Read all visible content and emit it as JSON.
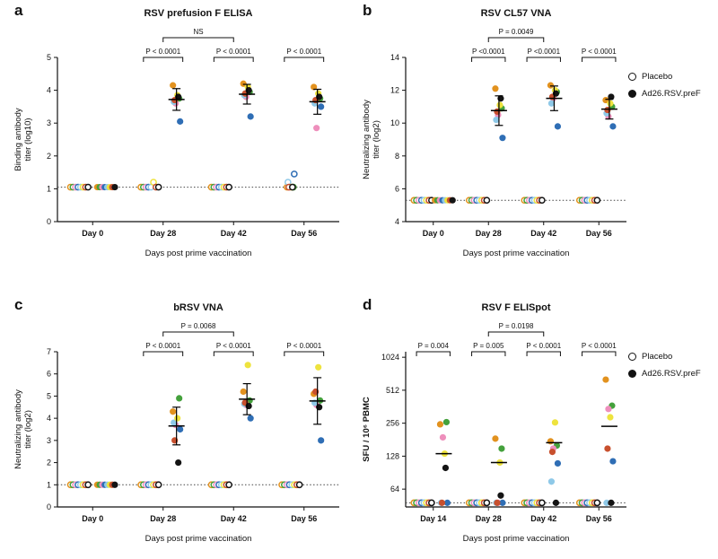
{
  "legend": {
    "placebo_label": "Placebo",
    "vaccine_label": "Ad26.RSV.preF"
  },
  "style": {
    "palette": [
      "#E2921F",
      "#44A13C",
      "#EE8FBC",
      "#2F6EB5",
      "#8FC9E8",
      "#EEE33E",
      "#C8502E",
      "#141414"
    ],
    "axis_color": "#111111",
    "mean_color": "#000000",
    "lod_color": "#444444",
    "background": "#ffffff"
  },
  "chart_data": [
    {
      "panel_label": "a",
      "type": "scatter",
      "title": "RSV prefusion F ELISA",
      "scale": "linear",
      "ylim": [
        0,
        5
      ],
      "yticks": [
        0,
        1,
        2,
        3,
        4,
        5
      ],
      "lod": 1.05,
      "ylabel_lines": [
        "Binding antibody",
        "titer (log10)"
      ],
      "ylabel_bold": false,
      "xlabel": "Days post prime vaccination",
      "categories": [
        "Day 0",
        "Day 28",
        "Day 42",
        "Day 56"
      ],
      "groups": [
        {
          "name": "Placebo",
          "style": "open",
          "points": [
            [
              1.05,
              1.05,
              1.05,
              1.05,
              1.05,
              1.05,
              1.05,
              1.05
            ],
            [
              1.05,
              1.05,
              1.05,
              1.05,
              1.05,
              1.2,
              1.05,
              1.05
            ],
            [
              1.05,
              1.05,
              1.05,
              1.05,
              1.05,
              1.05,
              1.05,
              1.05
            ],
            [
              1.05,
              1.05,
              1.05,
              1.45,
              1.2,
              1.05,
              1.05,
              1.05
            ]
          ]
        },
        {
          "name": "Ad26.RSV.preF",
          "style": "filled",
          "points": [
            [
              1.05,
              1.05,
              1.05,
              1.05,
              1.05,
              1.05,
              1.05,
              1.05
            ],
            [
              4.15,
              3.75,
              3.6,
              3.05,
              3.65,
              3.85,
              3.7,
              3.8
            ],
            [
              4.2,
              3.95,
              3.8,
              3.2,
              3.85,
              4.1,
              3.9,
              4.0
            ],
            [
              4.1,
              3.75,
              2.85,
              3.5,
              3.6,
              3.9,
              3.7,
              3.8
            ]
          ]
        }
      ],
      "center": [
        null,
        3.72,
        3.88,
        3.65
      ],
      "err": [
        null,
        0.33,
        0.3,
        0.38
      ],
      "comparisons": [
        {
          "cat": 1,
          "label": "P < 0.0001"
        },
        {
          "cat": 2,
          "label": "P < 0.0001"
        },
        {
          "cat": 3,
          "label": "P < 0.0001"
        }
      ],
      "span_comparison": {
        "from": 1,
        "to": 2,
        "label": "NS"
      }
    },
    {
      "panel_label": "b",
      "type": "scatter",
      "title": "RSV CL57 VNA",
      "scale": "linear",
      "ylim": [
        4,
        14
      ],
      "yticks": [
        4,
        6,
        8,
        10,
        12,
        14
      ],
      "lod": 5.3,
      "ylabel_lines": [
        "Neutralizing antibody",
        "titer (log2)"
      ],
      "ylabel_bold": false,
      "xlabel": "Days post prime vaccination",
      "categories": [
        "Day 0",
        "Day 28",
        "Day 42",
        "Day 56"
      ],
      "groups": [
        {
          "name": "Placebo",
          "style": "open",
          "points": [
            [
              5.3,
              5.3,
              5.3,
              5.3,
              5.3,
              5.3,
              5.3,
              5.3
            ],
            [
              5.3,
              5.3,
              5.3,
              5.3,
              5.3,
              5.3,
              5.3,
              5.3
            ],
            [
              5.3,
              5.3,
              5.3,
              5.3,
              5.3,
              5.3,
              5.3,
              5.3
            ],
            [
              5.3,
              5.3,
              5.3,
              5.3,
              5.3,
              5.3,
              5.3,
              5.3
            ]
          ]
        },
        {
          "name": "Ad26.RSV.preF",
          "style": "filled",
          "points": [
            [
              5.3,
              5.3,
              5.3,
              5.3,
              5.3,
              5.3,
              5.3,
              5.3
            ],
            [
              12.1,
              10.9,
              10.5,
              9.1,
              10.2,
              11.1,
              10.7,
              11.5
            ],
            [
              12.3,
              11.9,
              11.5,
              9.8,
              11.2,
              12.0,
              11.6,
              11.8
            ],
            [
              11.4,
              11.0,
              10.4,
              9.8,
              10.6,
              11.2,
              10.8,
              11.6
            ]
          ]
        }
      ],
      "center": [
        null,
        10.76,
        11.51,
        10.85
      ],
      "err": [
        null,
        0.9,
        0.75,
        0.6
      ],
      "comparisons": [
        {
          "cat": 1,
          "label": "P <0.0001"
        },
        {
          "cat": 2,
          "label": "P <0.0001"
        },
        {
          "cat": 3,
          "label": "P < 0.0001"
        }
      ],
      "span_comparison": {
        "from": 1,
        "to": 2,
        "label": "P = 0.0049"
      }
    },
    {
      "panel_label": "c",
      "type": "scatter",
      "title": "bRSV VNA",
      "scale": "linear",
      "ylim": [
        0,
        7
      ],
      "yticks": [
        0,
        1,
        2,
        3,
        4,
        5,
        6,
        7
      ],
      "lod": 1.0,
      "ylabel_lines": [
        "Neutralizing antibody",
        "titer (log2)"
      ],
      "ylabel_bold": false,
      "xlabel": "Days post prime vaccination",
      "categories": [
        "Day 0",
        "Day 28",
        "Day 42",
        "Day 56"
      ],
      "groups": [
        {
          "name": "Placebo",
          "style": "open",
          "points": [
            [
              1.0,
              1.0,
              1.0,
              1.0,
              1.0,
              1.0,
              1.0,
              1.0
            ],
            [
              1.0,
              1.0,
              1.0,
              1.0,
              1.0,
              1.0,
              1.0,
              1.0
            ],
            [
              1.0,
              1.0,
              1.0,
              1.0,
              1.0,
              1.0,
              1.0,
              1.0
            ],
            [
              1.0,
              1.0,
              1.0,
              1.0,
              1.0,
              1.0,
              1.0,
              1.0
            ]
          ]
        },
        {
          "name": "Ad26.RSV.preF",
          "style": "filled",
          "points": [
            [
              1.0,
              1.0,
              1.0,
              1.0,
              1.0,
              1.0,
              1.0,
              1.0
            ],
            [
              4.3,
              4.9,
              3.7,
              3.5,
              3.8,
              4.0,
              3.0,
              2.0
            ],
            [
              5.2,
              4.8,
              4.6,
              4.0,
              4.65,
              6.4,
              4.7,
              4.55
            ],
            [
              5.1,
              4.8,
              4.6,
              3.0,
              4.7,
              6.3,
              5.2,
              4.5
            ]
          ]
        }
      ],
      "center": [
        null,
        3.65,
        4.86,
        4.78
      ],
      "err": [
        null,
        0.85,
        0.7,
        1.05
      ],
      "comparisons": [
        {
          "cat": 1,
          "label": "P < 0.0001"
        },
        {
          "cat": 2,
          "label": "P < 0.0001"
        },
        {
          "cat": 3,
          "label": "P < 0.0001"
        }
      ],
      "span_comparison": {
        "from": 1,
        "to": 2,
        "label": "P = 0.0068"
      }
    },
    {
      "panel_label": "d",
      "type": "scatter",
      "title": "RSV F ELISpot",
      "scale": "log2",
      "ylim": [
        44,
        1150
      ],
      "yticks": [
        64,
        128,
        256,
        512,
        1024
      ],
      "lod": 48,
      "ylabel_lines": [
        "SFU / 10⁶ PBMC"
      ],
      "ylabel_bold": true,
      "xlabel": "Days post prime vaccination",
      "categories": [
        "Day 14",
        "Day 28",
        "Day 42",
        "Day 56"
      ],
      "groups": [
        {
          "name": "Placebo",
          "style": "open",
          "points": [
            [
              48,
              48,
              48,
              48,
              48,
              48,
              48,
              48
            ],
            [
              48,
              48,
              48,
              48,
              48,
              48,
              48,
              48
            ],
            [
              48,
              48,
              48,
              48,
              48,
              48,
              48,
              48
            ],
            [
              48,
              48,
              48,
              48,
              48,
              48,
              48,
              48
            ]
          ]
        },
        {
          "name": "Ad26.RSV.preF",
          "style": "filled",
          "points": [
            [
              250,
              262,
              190,
              48,
              48,
              135,
              48,
              100
            ],
            [
              185,
              150,
              48,
              48,
              48,
              112,
              48,
              56
            ],
            [
              175,
              160,
              150,
              110,
              75,
              260,
              140,
              48
            ],
            [
              640,
              370,
              345,
              115,
              48,
              290,
              150,
              48
            ]
          ]
        }
      ],
      "center": [
        135,
        112,
        170,
        240
      ],
      "err": [
        null,
        null,
        null,
        null
      ],
      "comparisons": [
        {
          "cat": 0,
          "label": "P = 0.004"
        },
        {
          "cat": 1,
          "label": "P = 0.005"
        },
        {
          "cat": 2,
          "label": "P < 0.0001"
        },
        {
          "cat": 3,
          "label": "P < 0.0001"
        }
      ],
      "span_comparison": {
        "from": 1,
        "to": 2,
        "label": "P = 0.0198"
      }
    }
  ]
}
